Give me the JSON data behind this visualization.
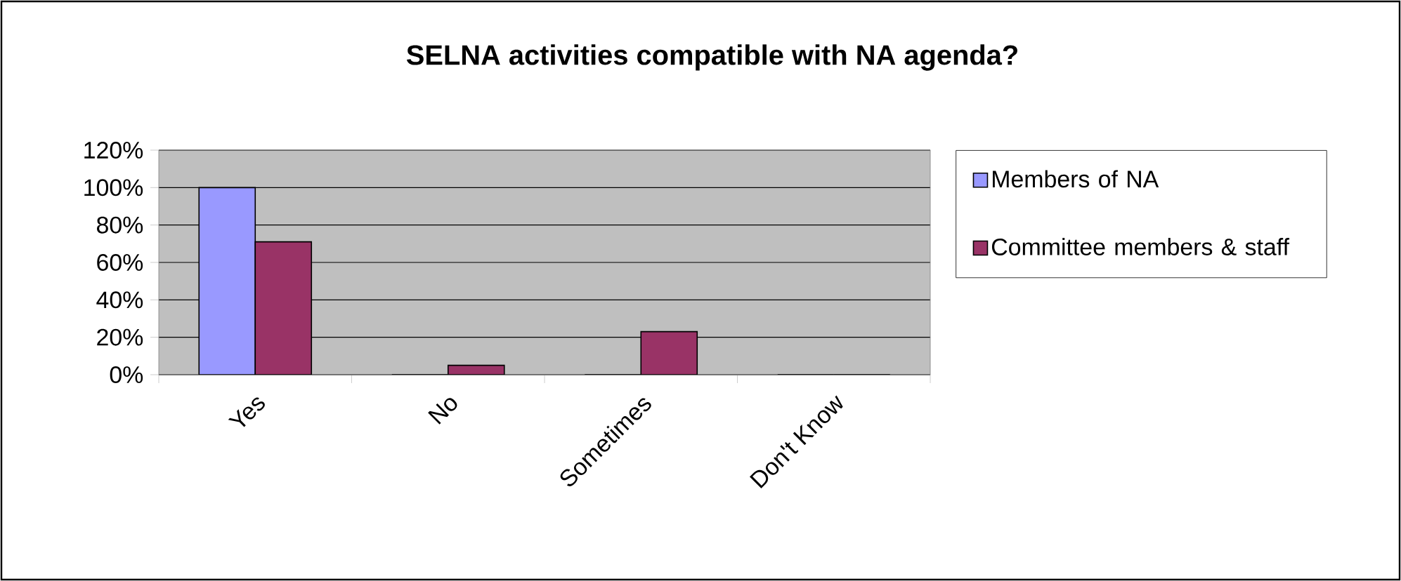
{
  "chart_data": {
    "type": "bar",
    "title": "SELNA activities compatible with NA agenda?",
    "categories": [
      "Yes",
      "No",
      "Sometimes",
      "Don't Know"
    ],
    "series": [
      {
        "name": "Members of NA",
        "color": "#9999ff",
        "values": [
          100,
          0,
          0,
          0
        ]
      },
      {
        "name": "Committee members & staff",
        "color": "#993366",
        "values": [
          71,
          5,
          23,
          0
        ]
      }
    ],
    "ylim": [
      0,
      120
    ],
    "yticks": [
      {
        "value": 0,
        "label": "0%"
      },
      {
        "value": 20,
        "label": "20%"
      },
      {
        "value": 40,
        "label": "40%"
      },
      {
        "value": 60,
        "label": "60%"
      },
      {
        "value": 80,
        "label": "80%"
      },
      {
        "value": 100,
        "label": "100%"
      },
      {
        "value": 120,
        "label": "120%"
      }
    ],
    "grid": "y",
    "legend": "right"
  }
}
